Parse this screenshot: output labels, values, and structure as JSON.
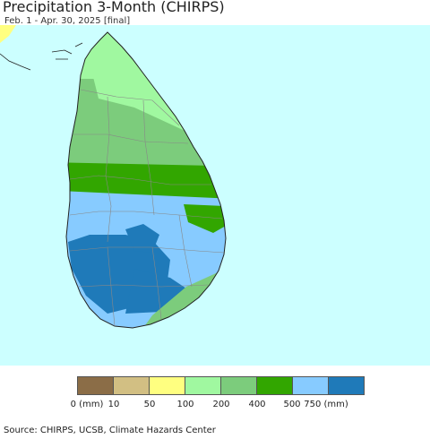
{
  "title": "Precipitation 3-Month (CHIRPS)",
  "subtitle": "Feb. 1 - Apr. 30, 2025 [final]",
  "legend": {
    "colors": [
      "#8b6d47",
      "#d2bf83",
      "#ffff80",
      "#a0f8a0",
      "#7ccc7c",
      "#32a600",
      "#87cbff",
      "#1f7ab9"
    ],
    "labels": [
      "0 (mm)",
      "10",
      "50",
      "100",
      "200",
      "400",
      "500",
      "750 (mm)"
    ]
  },
  "source": "Source: CHIRPS, UCSB, Climate Hazards Center",
  "colors": {
    "ocean": "#ccffff",
    "land_light_green": "#a0f8a0",
    "land_mid_green": "#7ccc7c",
    "land_dark_green": "#32a600",
    "land_light_blue": "#87cbff",
    "land_dark_blue": "#1f7ab9",
    "land_yellow": "#ffff80",
    "boundary": "#888888"
  }
}
